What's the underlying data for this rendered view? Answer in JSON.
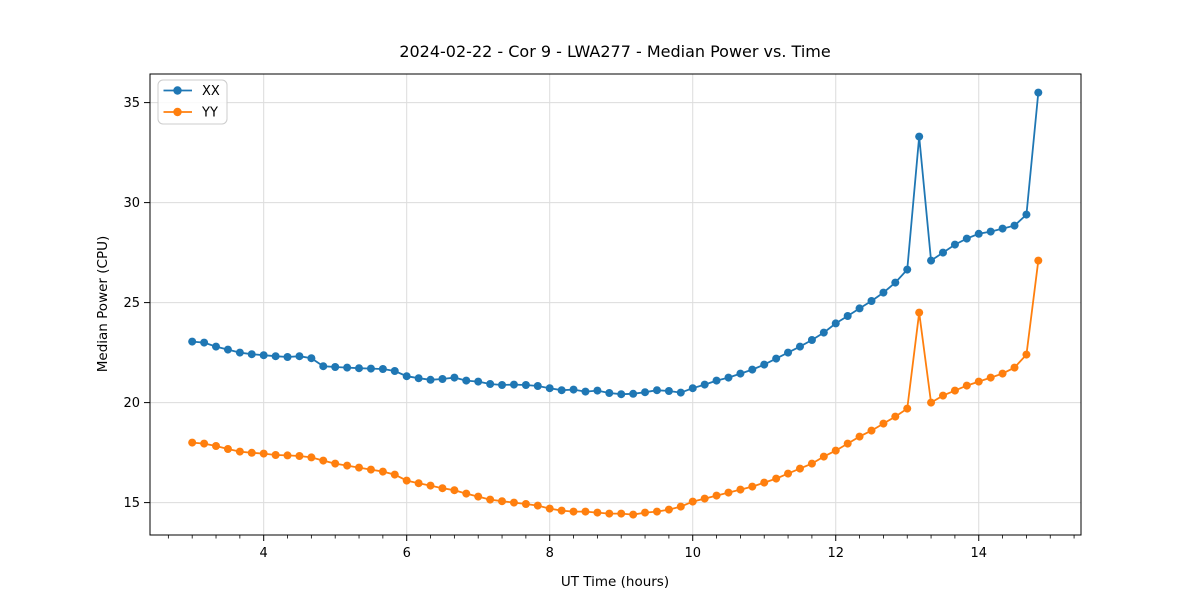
{
  "chart_data": {
    "type": "line",
    "title": "2024-02-22 - Cor 9 - LWA277 - Median Power vs. Time",
    "xlabel": "UT Time (hours)",
    "ylabel": "Median Power (CPU)",
    "xlim": [
      2.41,
      15.43
    ],
    "ylim": [
      13.38,
      36.43
    ],
    "x_major_ticks": [
      4,
      6,
      8,
      10,
      12,
      14
    ],
    "x_minor_tick_step": 0.33333,
    "y_major_ticks": [
      15,
      20,
      25,
      30,
      35
    ],
    "grid": true,
    "grid_color": "#dcdcdc",
    "legend_position": "upper-left",
    "x": [
      3.0,
      3.167,
      3.333,
      3.5,
      3.667,
      3.833,
      4.0,
      4.167,
      4.333,
      4.5,
      4.667,
      4.833,
      5.0,
      5.167,
      5.333,
      5.5,
      5.667,
      5.833,
      6.0,
      6.167,
      6.333,
      6.5,
      6.667,
      6.833,
      7.0,
      7.167,
      7.333,
      7.5,
      7.667,
      7.833,
      8.0,
      8.167,
      8.333,
      8.5,
      8.667,
      8.833,
      9.0,
      9.167,
      9.333,
      9.5,
      9.667,
      9.833,
      10.0,
      10.167,
      10.333,
      10.5,
      10.667,
      10.833,
      11.0,
      11.167,
      11.333,
      11.5,
      11.667,
      11.833,
      12.0,
      12.167,
      12.333,
      12.5,
      12.667,
      12.833,
      13.0,
      13.167,
      13.333,
      13.5,
      13.667,
      13.833,
      14.0,
      14.167,
      14.333,
      14.5,
      14.667,
      14.833
    ],
    "series": [
      {
        "name": "XX",
        "color": "#1f77b4",
        "marker": "circle",
        "values": [
          23.05,
          23.0,
          22.8,
          22.65,
          22.5,
          22.42,
          22.37,
          22.32,
          22.28,
          22.32,
          22.22,
          21.82,
          21.78,
          21.75,
          21.72,
          21.7,
          21.68,
          21.58,
          21.32,
          21.22,
          21.14,
          21.18,
          21.25,
          21.1,
          21.05,
          20.93,
          20.88,
          20.9,
          20.88,
          20.83,
          20.72,
          20.62,
          20.65,
          20.55,
          20.6,
          20.48,
          20.42,
          20.44,
          20.52,
          20.62,
          20.58,
          20.5,
          20.72,
          20.9,
          21.1,
          21.25,
          21.45,
          21.65,
          21.9,
          22.2,
          22.5,
          22.8,
          23.13,
          23.5,
          23.96,
          24.33,
          24.71,
          25.08,
          25.5,
          26.0,
          26.65,
          33.3,
          27.1,
          27.5,
          27.9,
          28.2,
          28.44,
          28.55,
          28.7,
          28.85,
          29.4,
          35.5
        ]
      },
      {
        "name": "YY",
        "color": "#ff7f0e",
        "marker": "circle",
        "values": [
          18.0,
          17.95,
          17.83,
          17.68,
          17.55,
          17.49,
          17.45,
          17.38,
          17.36,
          17.33,
          17.26,
          17.1,
          16.95,
          16.85,
          16.75,
          16.65,
          16.55,
          16.4,
          16.1,
          15.97,
          15.85,
          15.72,
          15.62,
          15.45,
          15.3,
          15.15,
          15.07,
          15.0,
          14.93,
          14.85,
          14.7,
          14.6,
          14.55,
          14.55,
          14.5,
          14.45,
          14.45,
          14.4,
          14.5,
          14.55,
          14.65,
          14.8,
          15.05,
          15.2,
          15.35,
          15.5,
          15.65,
          15.8,
          16.0,
          16.2,
          16.45,
          16.7,
          16.95,
          17.3,
          17.6,
          17.95,
          18.3,
          18.6,
          18.95,
          19.3,
          19.7,
          24.5,
          20.0,
          20.35,
          20.6,
          20.85,
          21.05,
          21.25,
          21.45,
          21.75,
          22.4,
          27.1
        ]
      }
    ]
  }
}
